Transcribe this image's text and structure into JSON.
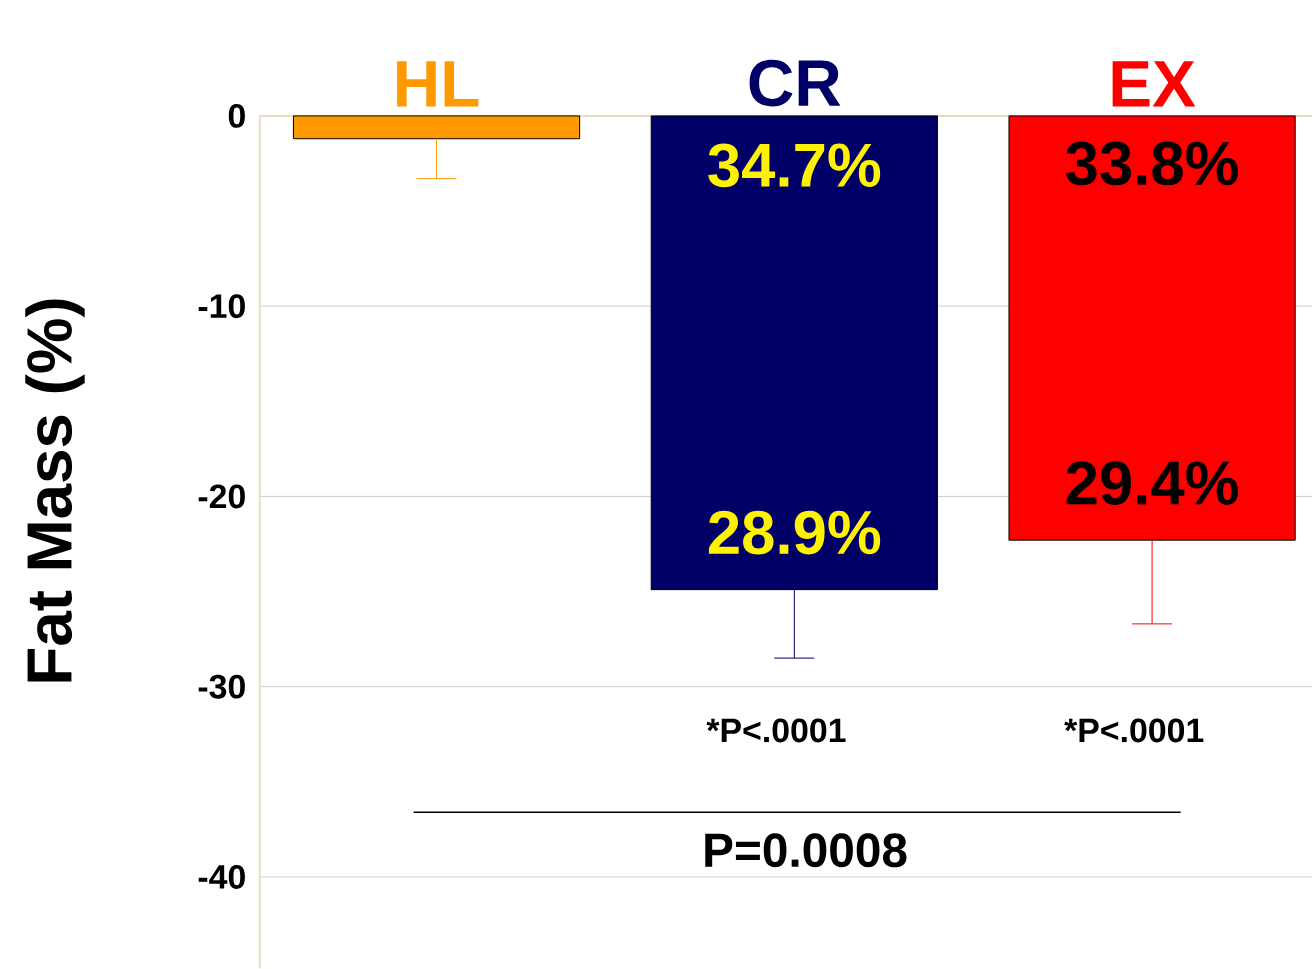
{
  "chart_data": {
    "type": "bar",
    "ylabel": "Fat Mass (%)",
    "categories": [
      "HL",
      "CR",
      "EX"
    ],
    "values": [
      -1.2,
      -24.9,
      -22.3
    ],
    "colors": [
      "#ff9900",
      "#000066",
      "#ff0000"
    ],
    "errors": [
      [
        -3.3,
        -1.2
      ],
      [
        -28.5,
        -24.9
      ],
      [
        -26.7,
        -22.3
      ]
    ],
    "ylim": [
      -44.8,
      0
    ],
    "yticks": [
      0,
      -10,
      -20,
      -30,
      -40
    ],
    "grid": "y",
    "annotations": [
      "34.7%",
      "28.9%",
      "33.8%",
      "29.4%",
      "*P<.0001",
      "*P<.0001",
      "P=0.0008"
    ]
  }
}
